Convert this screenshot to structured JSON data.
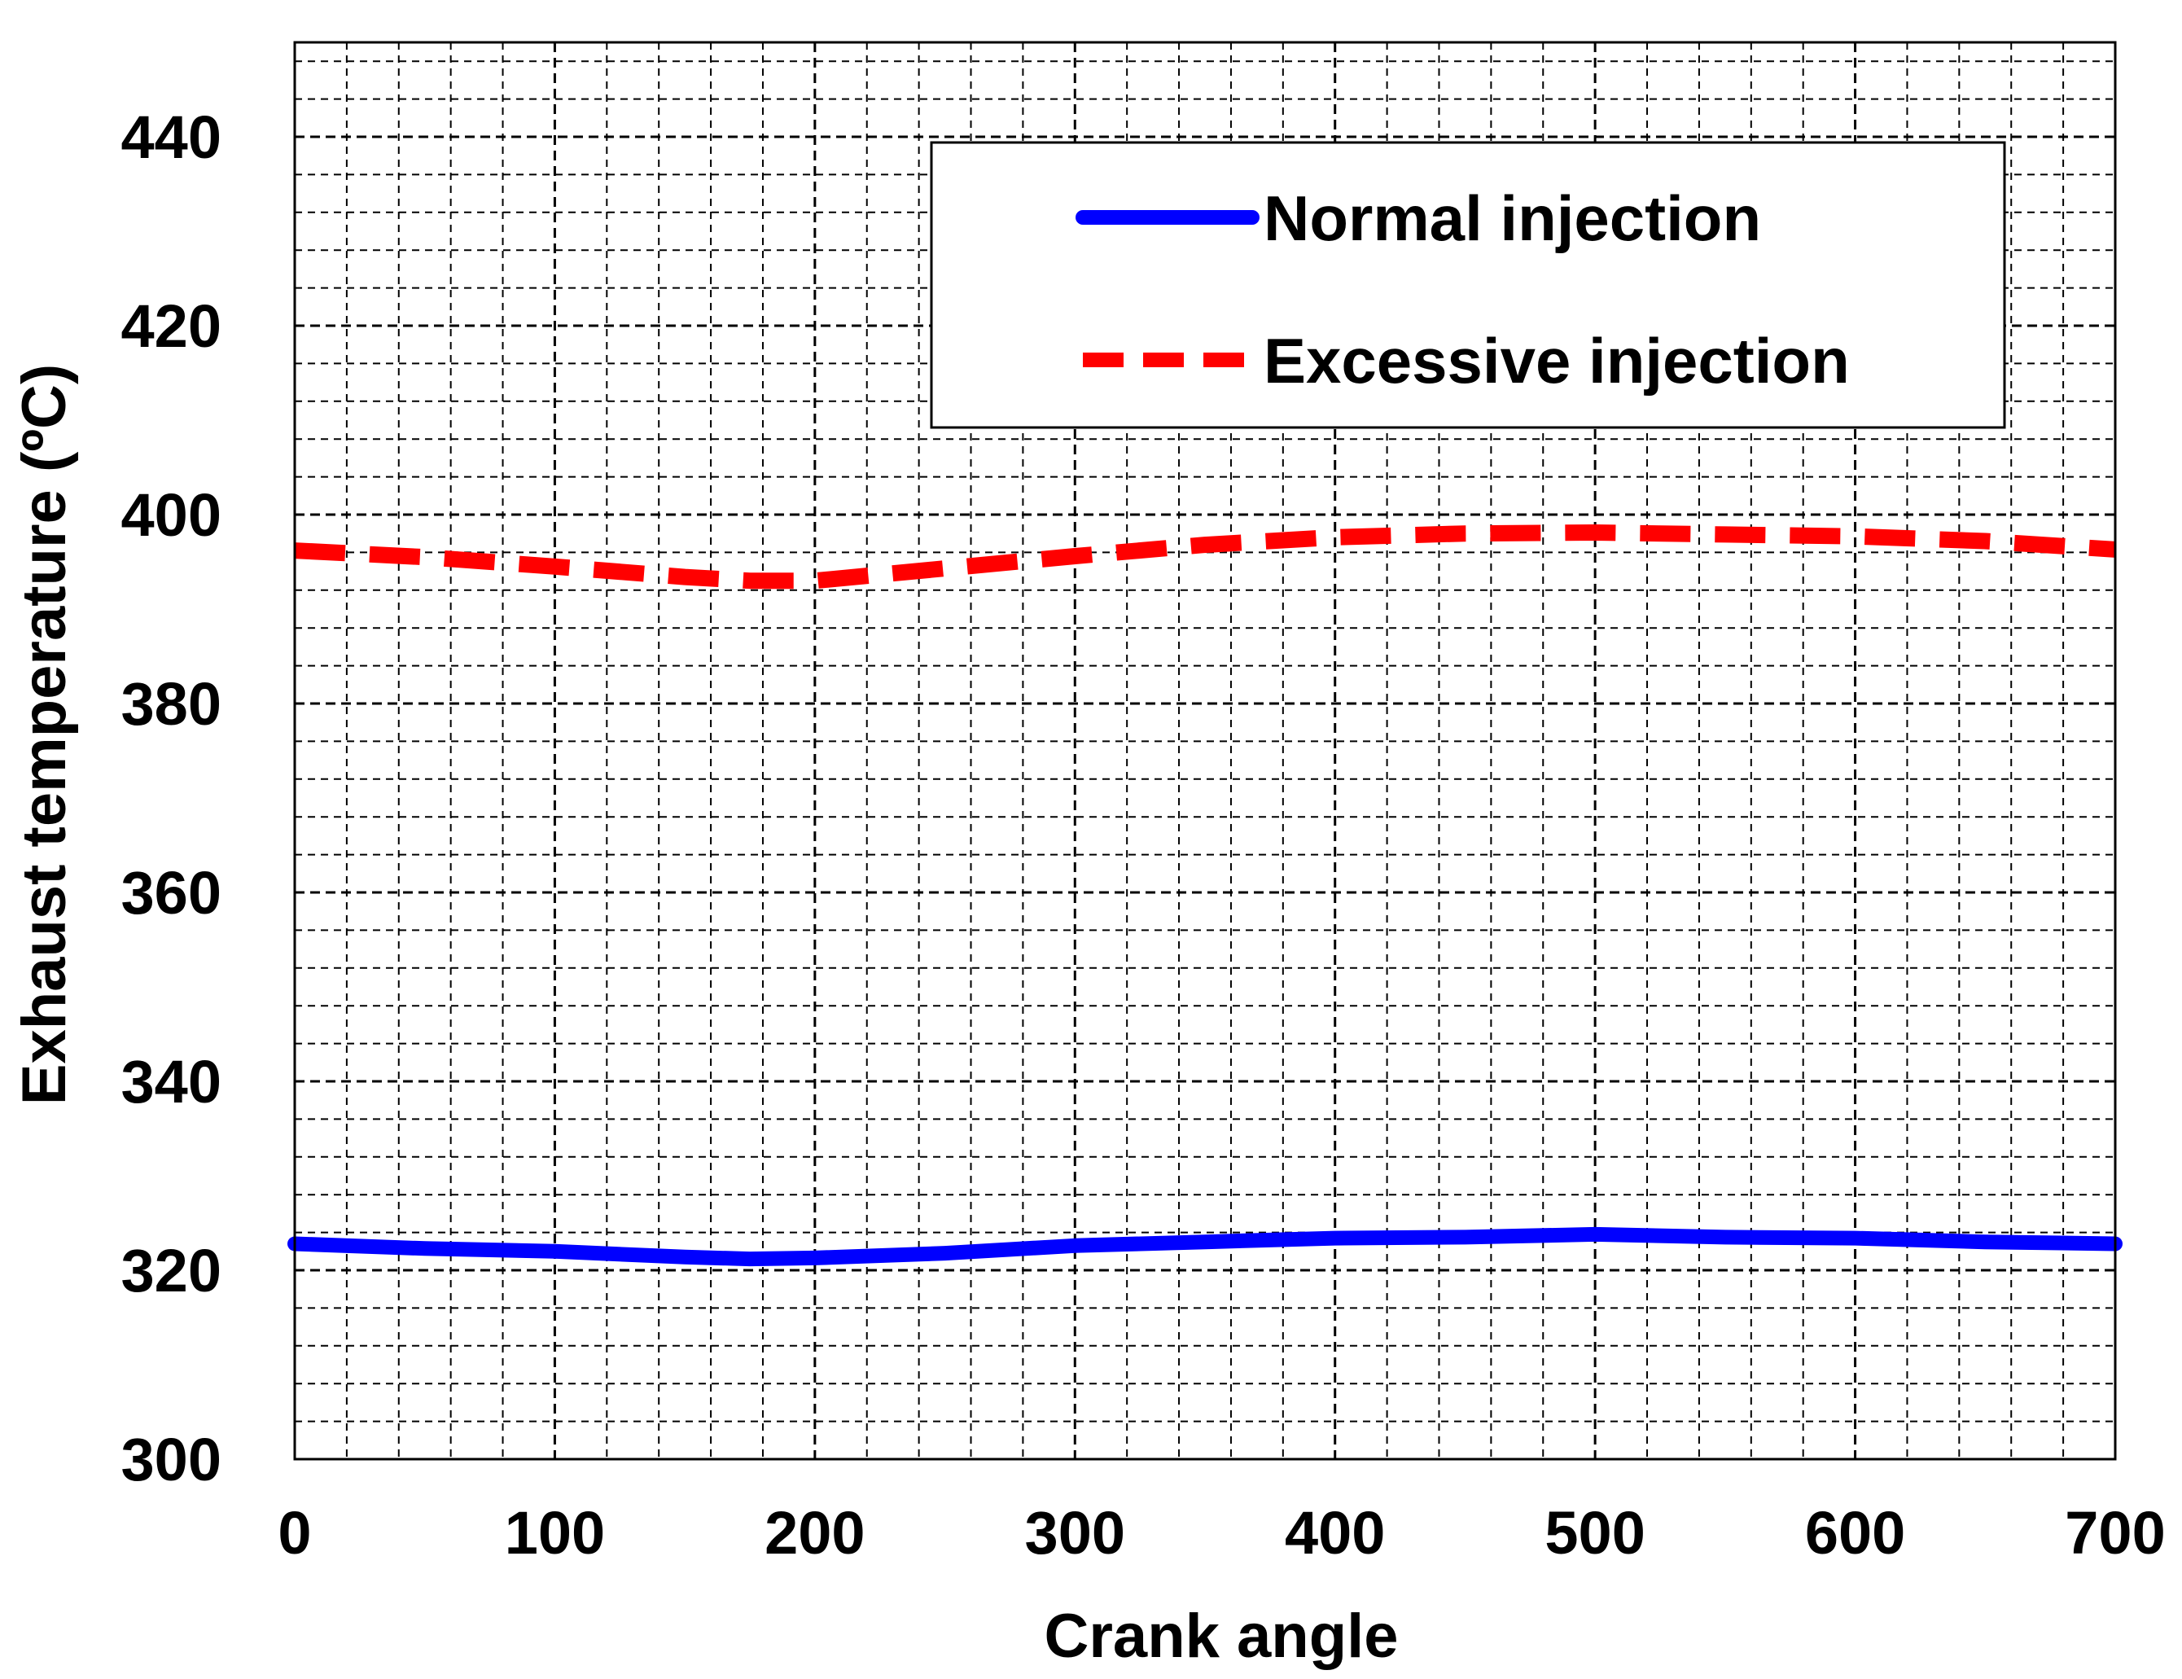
{
  "chart_data": {
    "type": "line",
    "title": "",
    "xlabel": "Crank angle",
    "ylabel": "Exhaust temperature (ºC)",
    "xlim": [
      0,
      700
    ],
    "ylim": [
      300,
      450
    ],
    "xticks": [
      "0",
      "100",
      "200",
      "300",
      "400",
      "500",
      "600",
      "700"
    ],
    "yticks": [
      "300",
      "320",
      "340",
      "360",
      "380",
      "400",
      "420",
      "440"
    ],
    "grid": true,
    "legend_position": "top-right",
    "series": [
      {
        "name": "Normal injection",
        "color": "#0000ff",
        "style": "solid",
        "x": [
          0,
          50,
          100,
          150,
          175,
          200,
          250,
          300,
          350,
          400,
          450,
          500,
          550,
          600,
          650,
          700
        ],
        "y": [
          322.8,
          322.3,
          322.0,
          321.4,
          321.2,
          321.3,
          321.8,
          322.6,
          323.0,
          323.4,
          323.5,
          323.8,
          323.5,
          323.4,
          323.0,
          322.8
        ]
      },
      {
        "name": "Excessive injection",
        "color": "#ff0000",
        "style": "dashed",
        "x": [
          0,
          50,
          100,
          150,
          175,
          200,
          250,
          300,
          350,
          400,
          450,
          500,
          550,
          600,
          650,
          700
        ],
        "y": [
          396.2,
          395.5,
          394.5,
          393.4,
          393.0,
          393.0,
          394.3,
          395.6,
          396.8,
          397.6,
          398.0,
          398.1,
          397.9,
          397.7,
          397.2,
          396.3
        ]
      }
    ]
  }
}
